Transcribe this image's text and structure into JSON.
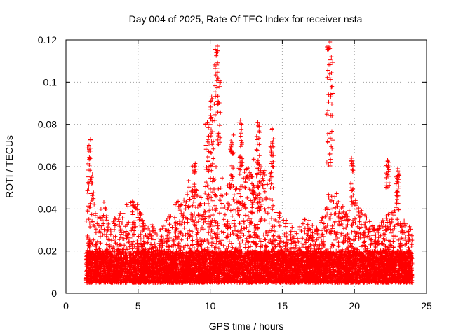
{
  "chart_data": {
    "type": "scatter",
    "title": "Day 004 of 2025, Rate Of TEC Index for receiver nsta",
    "xlabel": "GPS time / hours",
    "ylabel": "ROTI / TECUs",
    "xlim": [
      0,
      25
    ],
    "ylim": [
      0,
      0.12
    ],
    "xticks": [
      0,
      5,
      10,
      15,
      20,
      25
    ],
    "xtick_labels": [
      "0",
      "5",
      "10",
      "15",
      "20",
      "25"
    ],
    "yticks": [
      0,
      0.02,
      0.04,
      0.06,
      0.08,
      0.1,
      0.12
    ],
    "ytick_labels": [
      "0",
      "0.02",
      "0.04",
      "0.06",
      "0.08",
      "0.1",
      "0.12"
    ],
    "grid": true,
    "marker": "+",
    "color": "#ff0000",
    "series": [
      {
        "name": "ROTI",
        "x_range": [
          1.4,
          24.0
        ],
        "baseline_range": [
          0.005,
          0.02
        ],
        "envelope": [
          {
            "x": 1.4,
            "y": 0.035
          },
          {
            "x": 1.6,
            "y": 0.045
          },
          {
            "x": 1.8,
            "y": 0.062
          },
          {
            "x": 2.0,
            "y": 0.04
          },
          {
            "x": 2.3,
            "y": 0.035
          },
          {
            "x": 2.6,
            "y": 0.048
          },
          {
            "x": 3.0,
            "y": 0.03
          },
          {
            "x": 3.5,
            "y": 0.038
          },
          {
            "x": 4.0,
            "y": 0.04
          },
          {
            "x": 4.5,
            "y": 0.045
          },
          {
            "x": 5.0,
            "y": 0.042
          },
          {
            "x": 5.5,
            "y": 0.033
          },
          {
            "x": 6.0,
            "y": 0.035
          },
          {
            "x": 6.5,
            "y": 0.03
          },
          {
            "x": 7.0,
            "y": 0.035
          },
          {
            "x": 7.5,
            "y": 0.042
          },
          {
            "x": 8.0,
            "y": 0.045
          },
          {
            "x": 8.5,
            "y": 0.055
          },
          {
            "x": 9.0,
            "y": 0.05
          },
          {
            "x": 9.5,
            "y": 0.045
          },
          {
            "x": 10.0,
            "y": 0.06
          },
          {
            "x": 10.5,
            "y": 0.065
          },
          {
            "x": 11.0,
            "y": 0.05
          },
          {
            "x": 11.5,
            "y": 0.055
          },
          {
            "x": 12.0,
            "y": 0.05
          },
          {
            "x": 12.5,
            "y": 0.06
          },
          {
            "x": 13.0,
            "y": 0.065
          },
          {
            "x": 13.5,
            "y": 0.06
          },
          {
            "x": 14.0,
            "y": 0.065
          },
          {
            "x": 14.5,
            "y": 0.045
          },
          {
            "x": 15.0,
            "y": 0.035
          },
          {
            "x": 15.5,
            "y": 0.035
          },
          {
            "x": 16.0,
            "y": 0.03
          },
          {
            "x": 16.5,
            "y": 0.035
          },
          {
            "x": 17.0,
            "y": 0.035
          },
          {
            "x": 17.5,
            "y": 0.03
          },
          {
            "x": 18.0,
            "y": 0.045
          },
          {
            "x": 18.5,
            "y": 0.05
          },
          {
            "x": 19.0,
            "y": 0.045
          },
          {
            "x": 19.5,
            "y": 0.04
          },
          {
            "x": 20.0,
            "y": 0.045
          },
          {
            "x": 20.5,
            "y": 0.04
          },
          {
            "x": 21.0,
            "y": 0.035
          },
          {
            "x": 21.5,
            "y": 0.03
          },
          {
            "x": 22.0,
            "y": 0.035
          },
          {
            "x": 22.5,
            "y": 0.04
          },
          {
            "x": 23.0,
            "y": 0.045
          },
          {
            "x": 23.5,
            "y": 0.035
          },
          {
            "x": 24.0,
            "y": 0.03
          }
        ],
        "spikes": [
          {
            "x": 1.6,
            "y_from": 0.045,
            "y_to": 0.073
          },
          {
            "x": 8.9,
            "y_from": 0.04,
            "y_to": 0.062
          },
          {
            "x": 9.8,
            "y_from": 0.05,
            "y_to": 0.081
          },
          {
            "x": 10.1,
            "y_from": 0.06,
            "y_to": 0.093
          },
          {
            "x": 10.4,
            "y_from": 0.08,
            "y_to": 0.117
          },
          {
            "x": 10.6,
            "y_from": 0.07,
            "y_to": 0.102
          },
          {
            "x": 11.5,
            "y_from": 0.05,
            "y_to": 0.075
          },
          {
            "x": 12.1,
            "y_from": 0.055,
            "y_to": 0.082
          },
          {
            "x": 13.3,
            "y_from": 0.05,
            "y_to": 0.081
          },
          {
            "x": 14.3,
            "y_from": 0.055,
            "y_to": 0.078
          },
          {
            "x": 18.2,
            "y_from": 0.06,
            "y_to": 0.119
          },
          {
            "x": 18.4,
            "y_from": 0.05,
            "y_to": 0.112
          },
          {
            "x": 19.8,
            "y_from": 0.04,
            "y_to": 0.064
          },
          {
            "x": 22.3,
            "y_from": 0.05,
            "y_to": 0.063
          },
          {
            "x": 23.0,
            "y_from": 0.045,
            "y_to": 0.059
          }
        ],
        "notable_points": [
          {
            "x": 10.5,
            "y": 0.117
          },
          {
            "x": 10.5,
            "y": 0.102
          },
          {
            "x": 18.3,
            "y": 0.119
          },
          {
            "x": 18.4,
            "y": 0.112
          },
          {
            "x": 10.1,
            "y": 0.093
          },
          {
            "x": 9.8,
            "y": 0.081
          },
          {
            "x": 12.1,
            "y": 0.082
          },
          {
            "x": 13.3,
            "y": 0.081
          },
          {
            "x": 14.3,
            "y": 0.078
          },
          {
            "x": 1.7,
            "y": 0.073
          },
          {
            "x": 19.8,
            "y": 0.064
          },
          {
            "x": 22.3,
            "y": 0.063
          },
          {
            "x": 23.0,
            "y": 0.059
          }
        ]
      }
    ]
  }
}
